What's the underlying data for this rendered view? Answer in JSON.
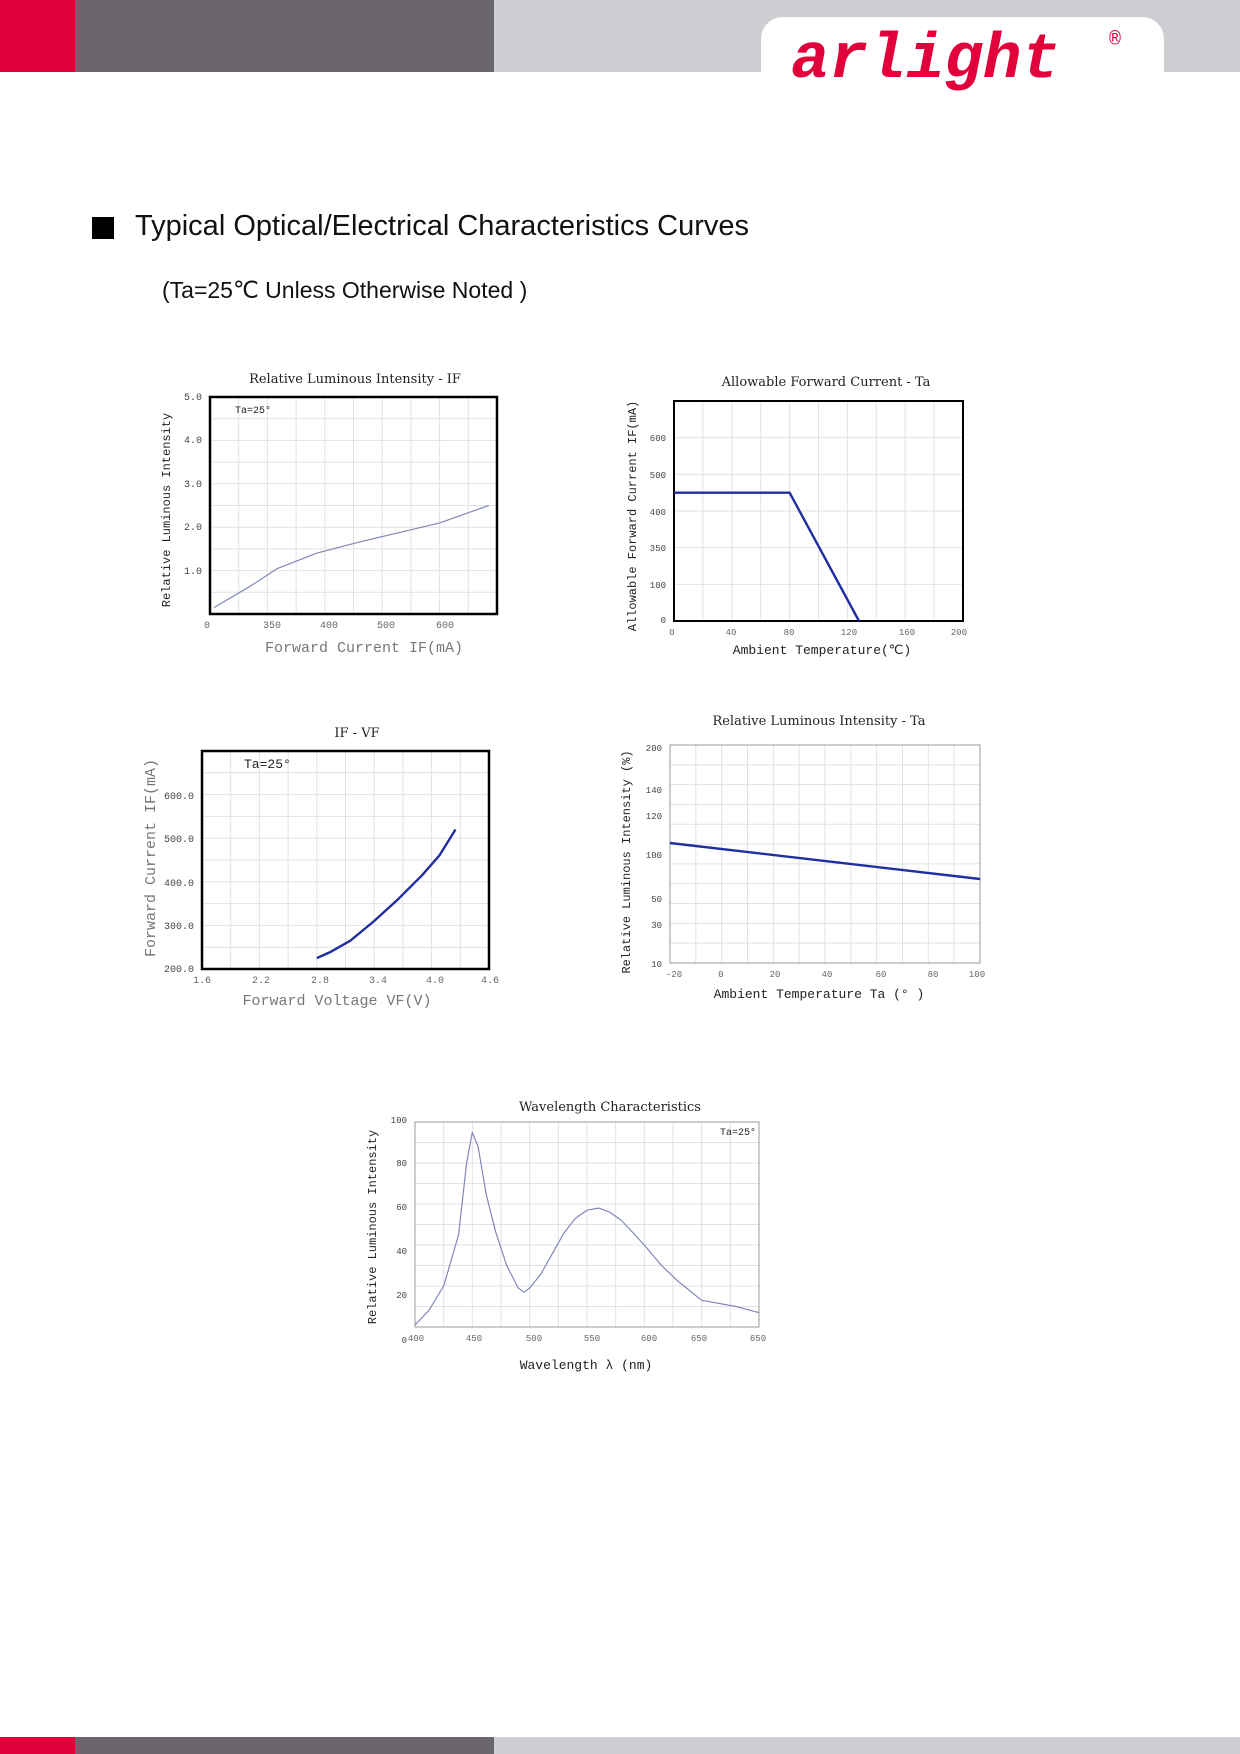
{
  "header": {
    "brand": "arlight",
    "registered": "®",
    "colors": {
      "red": "#e2003a",
      "dark": "#6b666d",
      "light": "#cdced2"
    }
  },
  "section": {
    "title": "Typical Optical/Electrical Characteristics Curves",
    "note": "(Ta=25℃ Unless Otherwise Noted )"
  },
  "chart_data": [
    {
      "type": "line",
      "title": "Relative Luminous Intensity - IF",
      "xlabel": "Forward Current IF(mA)",
      "ylabel": "Relative Luminous Intensity",
      "annotation": "Ta=25°",
      "x_ticks": [
        "0",
        "350",
        "400",
        "500",
        "600"
      ],
      "y_ticks": [
        "1.0",
        "2.0",
        "3.0",
        "4.0",
        "5.0"
      ],
      "grid": true,
      "line_color": "#8088b8",
      "series": [
        {
          "x": [
            10,
            100,
            165,
            260,
            360,
            450,
            560,
            620,
            680
          ],
          "y": [
            0.15,
            0.65,
            1.05,
            1.4,
            1.65,
            1.85,
            2.1,
            2.3,
            2.5
          ]
        }
      ]
    },
    {
      "type": "line",
      "title": "Allowable Forward Current - Ta",
      "xlabel": "Ambient Temperature(℃)",
      "ylabel": "Allowable Forward Current IF(mA)",
      "x_ticks": [
        "0",
        "40",
        "80",
        "120",
        "160",
        "200"
      ],
      "y_ticks": [
        "0",
        "100",
        "350",
        "400",
        "500",
        "600"
      ],
      "xlim": [
        0,
        200
      ],
      "ylim": [
        0,
        600
      ],
      "grid": true,
      "line_color": "#1f2ea0",
      "series": [
        {
          "x": [
            0,
            80,
            128
          ],
          "y": [
            350,
            350,
            0
          ]
        }
      ]
    },
    {
      "type": "line",
      "title": "IF - VF",
      "xlabel": "Forward Voltage VF(V)",
      "ylabel": "Forward Current IF(mA)",
      "annotation": "Ta=25°",
      "x_ticks": [
        "1.6",
        "2.2",
        "2.8",
        "3.4",
        "4.0",
        "4.6"
      ],
      "y_ticks": [
        "200.0",
        "300.0",
        "400.0",
        "500.0",
        "600.0"
      ],
      "xlim": [
        1.6,
        4.6
      ],
      "grid": true,
      "line_color": "#1f2ea0",
      "series": [
        {
          "x": [
            2.8,
            2.95,
            3.15,
            3.4,
            3.65,
            3.9,
            4.08,
            4.25
          ],
          "y": [
            225,
            240,
            265,
            310,
            360,
            415,
            460,
            520
          ]
        }
      ]
    },
    {
      "type": "line",
      "title": "Relative Luminous Intensity - Ta",
      "xlabel": "Ambient Temperature Ta (° )",
      "ylabel": "Relative Luminous Intensity (%)",
      "x_ticks": [
        "-20",
        "0",
        "20",
        "40",
        "60",
        "80",
        "100"
      ],
      "y_ticks": [
        "10",
        "30",
        "50",
        "100",
        "120",
        "140",
        "200"
      ],
      "xlim": [
        -20,
        100
      ],
      "grid": true,
      "line_color": "#1f2ea0",
      "series": [
        {
          "x": [
            -20,
            100
          ],
          "y": [
            107,
            78
          ]
        }
      ]
    },
    {
      "type": "line",
      "title": "Wavelength Characteristics",
      "xlabel": "Wavelength λ (nm)",
      "ylabel": "Relative Luminous Intensity",
      "annotation": "Ta=25°",
      "x_ticks": [
        "400",
        "450",
        "500",
        "550",
        "600",
        "650",
        "650"
      ],
      "y_ticks": [
        "0",
        "20",
        "40",
        "60",
        "80",
        "100"
      ],
      "ylim": [
        0,
        100
      ],
      "grid": true,
      "line_color": "#8088b8",
      "series": [
        {
          "x": [
            400,
            412,
            425,
            438,
            445,
            450,
            455,
            462,
            470,
            480,
            490,
            495,
            500,
            510,
            520,
            530,
            540,
            550,
            560,
            570,
            580,
            590,
            600,
            615,
            630,
            650,
            680,
            700
          ],
          "y": [
            1,
            8,
            20,
            45,
            80,
            95,
            88,
            65,
            47,
            30,
            19,
            17,
            19,
            26,
            36,
            46,
            53,
            57,
            58,
            56,
            52,
            46,
            40,
            30,
            22,
            13,
            10,
            7
          ]
        }
      ]
    }
  ]
}
